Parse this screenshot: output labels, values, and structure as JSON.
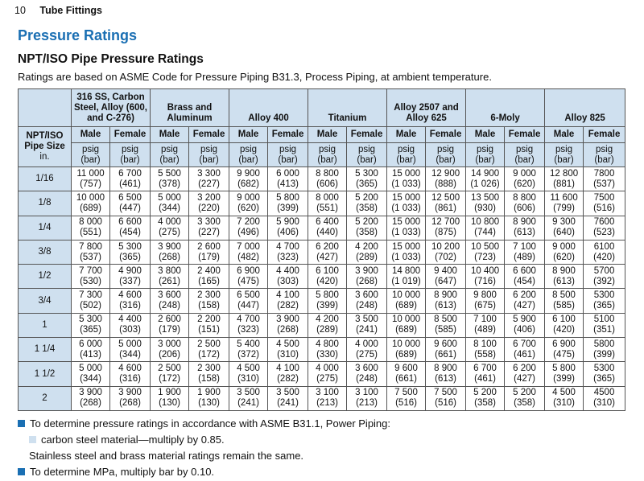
{
  "header": {
    "page_number": "10",
    "section": "Tube Fittings"
  },
  "title": "Pressure Ratings",
  "subtitle": "NPT/ISO Pipe Pressure Ratings",
  "intro": "Ratings are based on ASME Code for Pressure Piping B31.3, Process Piping, at ambient temperature.",
  "table": {
    "size_header_line1": "NPT/ISO",
    "size_header_line2": "Pipe Size",
    "size_header_line3": "in.",
    "materials": [
      {
        "line1": "316 SS, Carbon",
        "line2": "Steel, Alloy (600,",
        "line3": "and C-276)"
      },
      {
        "line1": "Brass and",
        "line2": "Aluminum",
        "line3": ""
      },
      {
        "line1": "Alloy 400",
        "line2": "",
        "line3": ""
      },
      {
        "line1": "Titanium",
        "line2": "",
        "line3": ""
      },
      {
        "line1": "Alloy 2507 and",
        "line2": "Alloy 625",
        "line3": ""
      },
      {
        "line1": "6-Moly",
        "line2": "",
        "line3": ""
      },
      {
        "line1": "Alloy 825",
        "line2": "",
        "line3": ""
      }
    ],
    "male_label": "Male",
    "female_label": "Female",
    "unit_psig": "psig",
    "unit_bar": "(bar)",
    "rows": [
      {
        "size": "1/16",
        "cells": [
          [
            "11 000",
            "(757)"
          ],
          [
            "6 700",
            "(461)"
          ],
          [
            "5 500",
            "(378)"
          ],
          [
            "3 300",
            "(227)"
          ],
          [
            "9 900",
            "(682)"
          ],
          [
            "6 000",
            "(413)"
          ],
          [
            "8 800",
            "(606)"
          ],
          [
            "5 300",
            "(365)"
          ],
          [
            "15 000",
            "(1 033)"
          ],
          [
            "12 900",
            "(888)"
          ],
          [
            "14 900",
            "(1 026)"
          ],
          [
            "9 000",
            "(620)"
          ],
          [
            "12 800",
            "(881)"
          ],
          [
            "7800",
            "(537)"
          ]
        ]
      },
      {
        "size": "1/8",
        "cells": [
          [
            "10 000",
            "(689)"
          ],
          [
            "6 500",
            "(447)"
          ],
          [
            "5 000",
            "(344)"
          ],
          [
            "3 200",
            "(220)"
          ],
          [
            "9 000",
            "(620)"
          ],
          [
            "5 800",
            "(399)"
          ],
          [
            "8 000",
            "(551)"
          ],
          [
            "5 200",
            "(358)"
          ],
          [
            "15 000",
            "(1 033)"
          ],
          [
            "12 500",
            "(861)"
          ],
          [
            "13 500",
            "(930)"
          ],
          [
            "8 800",
            "(606)"
          ],
          [
            "11 600",
            "(799)"
          ],
          [
            "7500",
            "(516)"
          ]
        ]
      },
      {
        "size": "1/4",
        "cells": [
          [
            "8 000",
            "(551)"
          ],
          [
            "6 600",
            "(454)"
          ],
          [
            "4 000",
            "(275)"
          ],
          [
            "3 300",
            "(227)"
          ],
          [
            "7 200",
            "(496)"
          ],
          [
            "5 900",
            "(406)"
          ],
          [
            "6 400",
            "(440)"
          ],
          [
            "5 200",
            "(358)"
          ],
          [
            "15 000",
            "(1 033)"
          ],
          [
            "12 700",
            "(875)"
          ],
          [
            "10 800",
            "(744)"
          ],
          [
            "8 900",
            "(613)"
          ],
          [
            "9 300",
            "(640)"
          ],
          [
            "7600",
            "(523)"
          ]
        ]
      },
      {
        "size": "3/8",
        "cells": [
          [
            "7 800",
            "(537)"
          ],
          [
            "5 300",
            "(365)"
          ],
          [
            "3 900",
            "(268)"
          ],
          [
            "2 600",
            "(179)"
          ],
          [
            "7 000",
            "(482)"
          ],
          [
            "4 700",
            "(323)"
          ],
          [
            "6 200",
            "(427)"
          ],
          [
            "4 200",
            "(289)"
          ],
          [
            "15 000",
            "(1 033)"
          ],
          [
            "10 200",
            "(702)"
          ],
          [
            "10 500",
            "(723)"
          ],
          [
            "7 100",
            "(489)"
          ],
          [
            "9 000",
            "(620)"
          ],
          [
            "6100",
            "(420)"
          ]
        ]
      },
      {
        "size": "1/2",
        "cells": [
          [
            "7 700",
            "(530)"
          ],
          [
            "4 900",
            "(337)"
          ],
          [
            "3 800",
            "(261)"
          ],
          [
            "2 400",
            "(165)"
          ],
          [
            "6 900",
            "(475)"
          ],
          [
            "4 400",
            "(303)"
          ],
          [
            "6 100",
            "(420)"
          ],
          [
            "3 900",
            "(268)"
          ],
          [
            "14 800",
            "(1 019)"
          ],
          [
            "9 400",
            "(647)"
          ],
          [
            "10 400",
            "(716)"
          ],
          [
            "6 600",
            "(454)"
          ],
          [
            "8 900",
            "(613)"
          ],
          [
            "5700",
            "(392)"
          ]
        ]
      },
      {
        "size": "3/4",
        "cells": [
          [
            "7 300",
            "(502)"
          ],
          [
            "4 600",
            "(316)"
          ],
          [
            "3 600",
            "(248)"
          ],
          [
            "2 300",
            "(158)"
          ],
          [
            "6 500",
            "(447)"
          ],
          [
            "4 100",
            "(282)"
          ],
          [
            "5 800",
            "(399)"
          ],
          [
            "3 600",
            "(248)"
          ],
          [
            "10 000",
            "(689)"
          ],
          [
            "8 900",
            "(613)"
          ],
          [
            "9 800",
            "(675)"
          ],
          [
            "6 200",
            "(427)"
          ],
          [
            "8 500",
            "(585)"
          ],
          [
            "5300",
            "(365)"
          ]
        ]
      },
      {
        "size": "1",
        "cells": [
          [
            "5 300",
            "(365)"
          ],
          [
            "4 400",
            "(303)"
          ],
          [
            "2 600",
            "(179)"
          ],
          [
            "2 200",
            "(151)"
          ],
          [
            "4 700",
            "(323)"
          ],
          [
            "3 900",
            "(268)"
          ],
          [
            "4 200",
            "(289)"
          ],
          [
            "3 500",
            "(241)"
          ],
          [
            "10 000",
            "(689)"
          ],
          [
            "8 500",
            "(585)"
          ],
          [
            "7 100",
            "(489)"
          ],
          [
            "5 900",
            "(406)"
          ],
          [
            "6 100",
            "(420)"
          ],
          [
            "5100",
            "(351)"
          ]
        ]
      },
      {
        "size": "1 1/4",
        "cells": [
          [
            "6 000",
            "(413)"
          ],
          [
            "5 000",
            "(344)"
          ],
          [
            "3 000",
            "(206)"
          ],
          [
            "2 500",
            "(172)"
          ],
          [
            "5 400",
            "(372)"
          ],
          [
            "4 500",
            "(310)"
          ],
          [
            "4 800",
            "(330)"
          ],
          [
            "4 000",
            "(275)"
          ],
          [
            "10 000",
            "(689)"
          ],
          [
            "9 600",
            "(661)"
          ],
          [
            "8 100",
            "(558)"
          ],
          [
            "6 700",
            "(461)"
          ],
          [
            "6 900",
            "(475)"
          ],
          [
            "5800",
            "(399)"
          ]
        ]
      },
      {
        "size": "1 1/2",
        "cells": [
          [
            "5 000",
            "(344)"
          ],
          [
            "4 600",
            "(316)"
          ],
          [
            "2 500",
            "(172)"
          ],
          [
            "2 300",
            "(158)"
          ],
          [
            "4 500",
            "(310)"
          ],
          [
            "4 100",
            "(282)"
          ],
          [
            "4 000",
            "(275)"
          ],
          [
            "3 600",
            "(248)"
          ],
          [
            "9 600",
            "(661)"
          ],
          [
            "8 900",
            "(613)"
          ],
          [
            "6 700",
            "(461)"
          ],
          [
            "6 200",
            "(427)"
          ],
          [
            "5 800",
            "(399)"
          ],
          [
            "5300",
            "(365)"
          ]
        ]
      },
      {
        "size": "2",
        "cells": [
          [
            "3 900",
            "(268)"
          ],
          [
            "3 900",
            "(268)"
          ],
          [
            "1 900",
            "(130)"
          ],
          [
            "1 900",
            "(130)"
          ],
          [
            "3 500",
            "(241)"
          ],
          [
            "3 500",
            "(241)"
          ],
          [
            "3 100",
            "(213)"
          ],
          [
            "3 100",
            "(213)"
          ],
          [
            "7 500",
            "(516)"
          ],
          [
            "7 500",
            "(516)"
          ],
          [
            "5 200",
            "(358)"
          ],
          [
            "5 200",
            "(358)"
          ],
          [
            "4 500",
            "(310)"
          ],
          [
            "4500",
            "(310)"
          ]
        ]
      }
    ]
  },
  "notes": {
    "note1": "To determine pressure ratings in accordance with ASME B31.1, Power Piping:",
    "note1_sub": "carbon steel material—multiply by 0.85.",
    "note1_plain": "Stainless steel and brass material ratings remain the same.",
    "note2": "To determine MPa, multiply bar by 0.10."
  },
  "colors": {
    "accent": "#1a6fb3",
    "header_fill": "#cfe0ef"
  }
}
